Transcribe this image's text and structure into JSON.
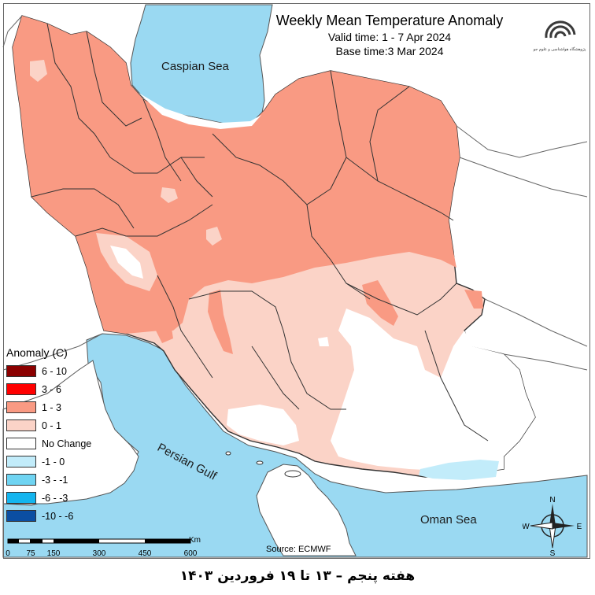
{
  "title": {
    "main": "Weekly Mean Temperature Anomaly",
    "valid": "Valid time: 1 - 7 Apr 2024",
    "base": "Base time:3 Mar 2024"
  },
  "labels": {
    "caspian": "Caspian Sea",
    "gulf": "Persian Gulf",
    "oman": "Oman Sea"
  },
  "legend": {
    "title": "Anomaly (C)",
    "items": [
      {
        "label": "6 - 10",
        "color": "#8b0000"
      },
      {
        "label": "3 - 6",
        "color": "#ff0000"
      },
      {
        "label": "1 - 3",
        "color": "#f99a83"
      },
      {
        "label": "0 - 1",
        "color": "#fbd3c7"
      },
      {
        "label": "No Change",
        "color": "#ffffff"
      },
      {
        "label": "-1 - 0",
        "color": "#c2ecfa"
      },
      {
        "label": "-3 - -1",
        "color": "#6fd4f2"
      },
      {
        "label": "-6 - -3",
        "color": "#13b5ef"
      },
      {
        "label": "-10 - -6",
        "color": "#0b4ea2"
      }
    ]
  },
  "scale": {
    "ticks": [
      "0",
      "75",
      "150",
      "300",
      "450",
      "600"
    ],
    "unit": "Km"
  },
  "compass": {
    "n": "N",
    "s": "S",
    "e": "E",
    "w": "W"
  },
  "source": "Source: ECMWF",
  "logo_text": "پژوهشگاه هواشناسی و علوم جو",
  "footer": "هفته پنجم – ۱۳ تا ۱۹ فروردین ۱۴۰۳",
  "colors": {
    "sea": "#9ad9f2",
    "warm": "#f99a83",
    "light_warm": "#fbd3c7",
    "border": "#333333"
  }
}
